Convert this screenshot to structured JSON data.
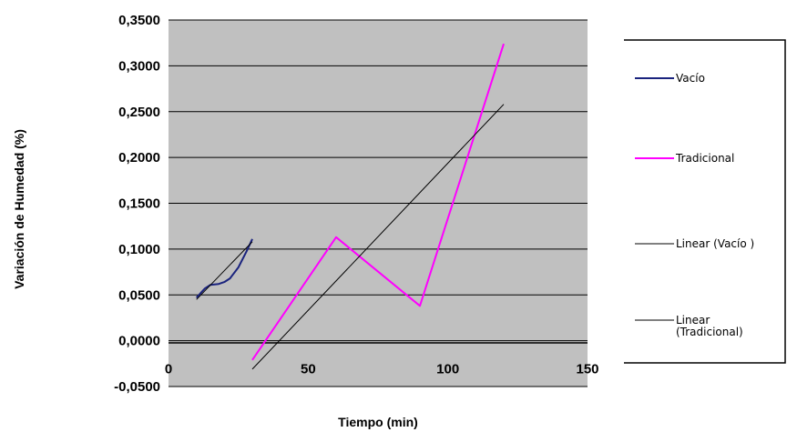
{
  "chart_data": {
    "type": "line",
    "title": "",
    "xlabel": "Tiempo (min)",
    "ylabel": "Variación de Humedad (%)",
    "xlim": [
      0,
      150
    ],
    "ylim": [
      -0.05,
      0.35
    ],
    "x_ticks": [
      "0",
      "50",
      "100",
      "150"
    ],
    "y_ticks": [
      "-0,0500",
      "0,0000",
      "0,0500",
      "0,1000",
      "0,1500",
      "0,2000",
      "0,2500",
      "0,3000",
      "0,3500"
    ],
    "grid": "horizontal",
    "plot_background": "#c0c0c0",
    "legend_position": "right",
    "series": [
      {
        "name": "Vacío",
        "color": "#1a237e",
        "x": [
          10,
          13,
          15,
          18,
          20,
          22,
          25,
          28,
          30
        ],
        "y": [
          0.047,
          0.057,
          0.061,
          0.062,
          0.064,
          0.068,
          0.08,
          0.098,
          0.111
        ]
      },
      {
        "name": "Tradicional",
        "color": "#ff00ff",
        "x": [
          30,
          60,
          90,
          120
        ],
        "y": [
          -0.021,
          0.113,
          0.038,
          0.324
        ]
      },
      {
        "name": "Linear (Vacío )",
        "color": "#000000",
        "trend": true,
        "x": [
          10,
          30
        ],
        "y": [
          0.045,
          0.108
        ]
      },
      {
        "name": "Linear (Tradicional)",
        "color": "#000000",
        "trend": true,
        "x": [
          30,
          120
        ],
        "y": [
          -0.031,
          0.258
        ]
      }
    ]
  }
}
